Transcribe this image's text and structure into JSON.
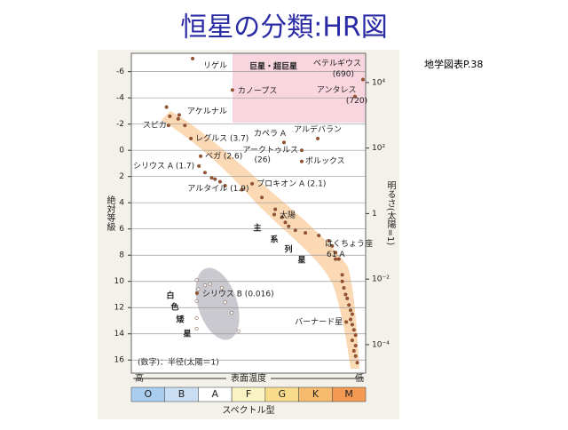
{
  "title": "恒星の分類:HR図",
  "reference": "地学図表P.38",
  "chart_data": {
    "type": "scatter",
    "y_label": "絶対等級",
    "y2_label": "明るさ(太陽=1)",
    "x_label": "表面温度",
    "x_high": "高",
    "x_low": "低",
    "category_label": "スペクトル型",
    "categories": [
      "O",
      "B",
      "A",
      "F",
      "G",
      "K",
      "M"
    ],
    "category_colors": [
      "#a9cdee",
      "#c9def2",
      "#ffffff",
      "#fbf3c4",
      "#f8dc8c",
      "#f6bb6e",
      "#f39a52"
    ],
    "xlim": [
      0,
      7
    ],
    "ylim": [
      17,
      -7.4
    ],
    "yticks": [
      -6,
      -4,
      -2,
      0,
      2,
      4,
      6,
      8,
      10,
      12,
      14,
      16
    ],
    "y2_scale": "log",
    "y2lim": [
      1.35e-05,
      78000
    ],
    "y2ticks": [
      {
        "value": 10000,
        "label": "10⁴"
      },
      {
        "value": 100,
        "label": "10²"
      },
      1,
      {
        "value": 0.01,
        "label": "10⁻²"
      },
      {
        "value": 0.0001,
        "label": "10⁻⁴"
      }
    ],
    "grid": true,
    "giant_label": "巨星・超巨星",
    "main_sequence_label": [
      "主",
      "系",
      "列",
      "星"
    ],
    "white_dwarf_label": [
      "白",
      "色",
      "矮",
      "星"
    ],
    "radius_note": "(数字)：半径(太陽＝1)",
    "series": [
      {
        "color": "#a0522d",
        "x": [
          1.05,
          1.15,
          1.4,
          1.6,
          2.2,
          2.4,
          2.5,
          2.8,
          3.3,
          3.9,
          4.3,
          4.5,
          4.6,
          4.7,
          4.9,
          5.2,
          5.6,
          5.9,
          6.0,
          6.1,
          6.2,
          6.3,
          6.3,
          6.35,
          6.4,
          6.45,
          6.5,
          6.55,
          6.6,
          6.55,
          6.6,
          6.65,
          6.7,
          6.6,
          6.7,
          6.65,
          6.7,
          6.75
        ],
        "values": [
          -3.3,
          -2.6,
          -2.4,
          -1.9,
          1.7,
          2.1,
          2.2,
          2.7,
          3.0,
          3.6,
          4.5,
          5.1,
          5.5,
          5.8,
          6.1,
          6.3,
          6.5,
          6.9,
          7.3,
          7.8,
          8.3,
          9.5,
          10.0,
          10.5,
          11.0,
          11.3,
          11.8,
          12.2,
          12.5,
          12.9,
          13.3,
          13.7,
          14.1,
          14.5,
          14.9,
          15.3,
          15.7,
          16.2
        ]
      },
      {
        "color": "#ffffff",
        "x": [
          1.95,
          2.0,
          1.95,
          2.2,
          2.35,
          2.7,
          2.8,
          3.0,
          3.2,
          1.95,
          1.95
        ],
        "values": [
          9.9,
          10.6,
          11.5,
          10.3,
          10.2,
          10.5,
          11.6,
          12.4,
          13.8,
          12.8,
          13.6
        ]
      }
    ],
    "stars": [
      {
        "label": "リゲル",
        "x": 1.83,
        "y": -7.0
      },
      {
        "label": "ベテルギウス",
        "sub": "(690)",
        "x": 6.92,
        "y": -5.4
      },
      {
        "label": "カノープス",
        "x": 3.02,
        "y": -4.6
      },
      {
        "label": "アンタレス",
        "sub": "(720)",
        "x": 6.68,
        "y": -4.1
      },
      {
        "label": "アケルナル",
        "x": 1.43,
        "y": -2.7
      },
      {
        "label": "スピカ",
        "x": 1.11,
        "y": -1.9
      },
      {
        "label": "カペラ A",
        "x": 4.56,
        "y": -0.6
      },
      {
        "label": "アルデバラン",
        "x": 5.57,
        "y": -0.9
      },
      {
        "label": "レグルス (3.7)",
        "x": 1.78,
        "y": -0.9
      },
      {
        "label": "アークトゥルス",
        "sub": "(26)",
        "x": 5.09,
        "y": 0.0
      },
      {
        "label": "ポルックス",
        "x": 5.09,
        "y": 0.85
      },
      {
        "label": "ベガ (2.6)",
        "x": 2.07,
        "y": 0.45
      },
      {
        "label": "シリウス A (1.7)",
        "x": 2.02,
        "y": 1.2
      },
      {
        "label": "アルタイル (1.9)",
        "x": 2.65,
        "y": 2.4
      },
      {
        "label": "プロキオン A (2.1)",
        "x": 3.61,
        "y": 2.55
      },
      {
        "label": "太陽",
        "x": 4.27,
        "y": 4.9
      },
      {
        "label": "はくちょう座",
        "sub": "61 A",
        "x": 6.1,
        "y": 8.3
      },
      {
        "label": "シリウス B (0.016)",
        "x": 1.96,
        "y": 10.9
      },
      {
        "label": "バーナード星",
        "x": 6.42,
        "y": 13.1
      }
    ]
  }
}
